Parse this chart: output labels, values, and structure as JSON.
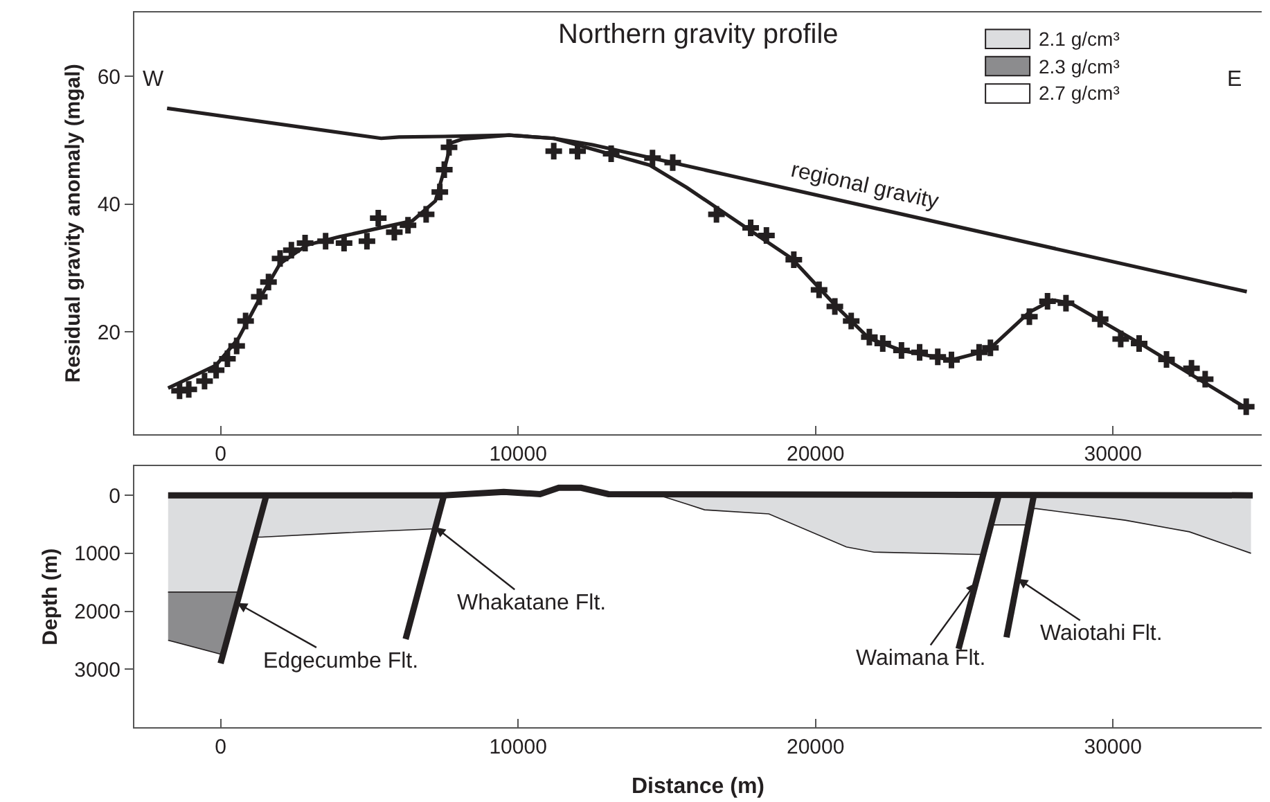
{
  "chart_data": [
    {
      "type": "line",
      "title": "Northern gravity profile",
      "ylabel": "Residual gravity anomaly (mgal)",
      "xlim": [
        -2900,
        35000
      ],
      "ylim": [
        4,
        70
      ],
      "xticks": [
        0,
        10000,
        20000,
        30000
      ],
      "yticks": [
        20,
        40,
        60
      ],
      "annotations": [
        "W",
        "E",
        {
          "text": "regional gravity",
          "x": 21660,
          "y": 39.7
        }
      ],
      "series": [
        {
          "type": "scatter",
          "marker": "cross",
          "color": "#231f20",
          "x": [
            -1380,
            -1070,
            -540,
            -150,
            230,
            540,
            840,
            1300,
            1610,
            2000,
            2380,
            2840,
            3530,
            4150,
            4920,
            5300,
            5840,
            6300,
            6910,
            7370,
            7520,
            7680,
            11200,
            12000,
            13130,
            14520,
            15200,
            16670,
            17820,
            18350,
            19270,
            20120,
            20650,
            21200,
            21810,
            22260,
            22890,
            23500,
            24110,
            24570,
            25500,
            25880,
            27190,
            27800,
            28420,
            29570,
            30260,
            30880,
            31800,
            32640,
            33100,
            34480
          ],
          "values": [
            10.8,
            11.0,
            12.3,
            14.0,
            15.8,
            17.8,
            21.7,
            25.5,
            27.8,
            31.5,
            32.8,
            33.9,
            34.2,
            33.9,
            34.2,
            37.8,
            35.6,
            36.7,
            38.4,
            41.9,
            45.4,
            48.9,
            48.3,
            48.3,
            47.9,
            47.2,
            46.5,
            38.4,
            36.3,
            35.1,
            31.3,
            26.6,
            24.0,
            21.7,
            19.2,
            18.2,
            17.1,
            16.8,
            16.1,
            15.6,
            16.8,
            17.5,
            22.4,
            24.8,
            24.5,
            22.0,
            18.9,
            18.2,
            15.7,
            14.3,
            12.6,
            8.3
          ]
        },
        {
          "color": "#231f20",
          "x": [
            -1765,
            -150,
            600,
            1230,
            2000,
            2900,
            4000,
            5380,
            6450,
            7220,
            7520,
            7750,
            8140,
            9700,
            11200,
            14430,
            15670,
            19200,
            20740,
            21800,
            22890,
            24570,
            25800,
            27190,
            27960,
            28570,
            31020,
            34470
          ],
          "values": [
            11.2,
            14.8,
            19.0,
            24.5,
            30.7,
            33.6,
            34.9,
            36.3,
            37.4,
            40.5,
            45.4,
            49.6,
            50.2,
            50.8,
            50.3,
            46.1,
            42.6,
            31.5,
            23.8,
            19.0,
            17.1,
            15.6,
            17.1,
            23.1,
            25.0,
            24.5,
            17.9,
            8.1
          ]
        },
        {
          "color": "#231f20",
          "x": [
            -1800,
            5400,
            6000,
            7500,
            9700,
            11200,
            12500,
            34500
          ],
          "values": [
            55.0,
            50.3,
            50.5,
            50.6,
            50.8,
            50.3,
            49.3,
            26.3
          ]
        }
      ]
    },
    {
      "type": "area",
      "xlabel": "Distance (m)",
      "ylabel": "Depth (m)",
      "xlim": [
        -2900,
        35000
      ],
      "ylim": [
        4000,
        -500
      ],
      "xticks": [
        0,
        10000,
        20000,
        30000
      ],
      "yticks": [
        0,
        1000,
        2000,
        3000
      ],
      "legend": "top right",
      "annotations": [
        {
          "text": "Edgecumbe Flt.",
          "x": 560,
          "y": 1860
        },
        {
          "text": "Whakatane Flt.",
          "x": 7220,
          "y": 550
        },
        {
          "text": "Waimana Flt.",
          "x": 25390,
          "y": 1510
        },
        {
          "text": "Waiotahi Flt.",
          "x": 26800,
          "y": 1440
        }
      ],
      "series": [
        {
          "name": "2.1 g/cm³",
          "color": "#dcdddf",
          "x": [
            -1765,
            650,
            1160,
            1380,
            4000,
            7060,
            7210,
            7510,
            11000,
            14750,
            15670,
            16270,
            18430,
            21040,
            21970,
            25420,
            25640,
            25900,
            27150,
            27260,
            27420,
            30410,
            32570,
            34640
          ],
          "values": [
            1670,
            1670,
            720,
            720,
            650,
            580,
            580,
            0,
            null,
            0,
            150,
            250,
            320,
            890,
            980,
            1020,
            1020,
            510,
            510,
            230,
            230,
            430,
            630,
            1000
          ]
        },
        {
          "name": "2.3 g/cm³",
          "color": "#8c8c8e",
          "x": [
            -1765,
            0,
            650,
            -1765
          ],
          "values": [
            2500,
            2740,
            1670,
            1670
          ]
        },
        {
          "name": "2.7 g/cm³",
          "color": "#ffffff"
        },
        {
          "type": "line",
          "color": "#231f20",
          "x": [
            -1765,
            7510,
            9520,
            10740,
            11370,
            12120,
            13040,
            34700
          ],
          "values": [
            0,
            0,
            -60,
            -20,
            -130,
            -130,
            -20,
            0
          ]
        },
        {
          "type": "line",
          "color": "#231f20",
          "x": [
            1540,
            0
          ],
          "values": [
            0,
            2900
          ]
        },
        {
          "type": "line",
          "color": "#231f20",
          "x": [
            7510,
            6220
          ],
          "values": [
            0,
            2480
          ]
        },
        {
          "type": "line",
          "color": "#231f20",
          "x": [
            26160,
            24810
          ],
          "values": [
            0,
            2650
          ]
        },
        {
          "type": "line",
          "color": "#231f20",
          "x": [
            27340,
            26420
          ],
          "values": [
            0,
            2450
          ]
        }
      ]
    }
  ]
}
